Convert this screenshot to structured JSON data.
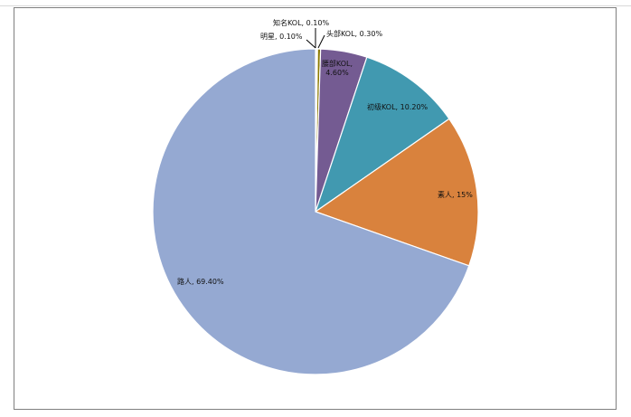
{
  "chart_data": {
    "type": "pie",
    "title": "",
    "slices": [
      {
        "label": "明星",
        "value": 0.1,
        "display": "明星, 0.10%",
        "color": "#1f4e79"
      },
      {
        "label": "知名KOL",
        "value": 0.1,
        "display": "知名KOL, 0.10%",
        "color": "#b8d78a"
      },
      {
        "label": "头部KOL",
        "value": 0.3,
        "display": "头部KOL, 0.30%",
        "color": "#8c7a00"
      },
      {
        "label": "腰部KOL",
        "value": 4.6,
        "display_line1": "腰部KOL,",
        "display_line2": "4.60%",
        "color": "#745b92"
      },
      {
        "label": "初级KOL",
        "value": 10.2,
        "display": "初级KOL, 10.20%",
        "color": "#4199b0"
      },
      {
        "label": "素人",
        "value": 15,
        "display": "素人, 15%",
        "color": "#d9823d"
      },
      {
        "label": "路人",
        "value": 69.4,
        "display": "路人, 69.40%",
        "color": "#95a9d2"
      }
    ]
  }
}
